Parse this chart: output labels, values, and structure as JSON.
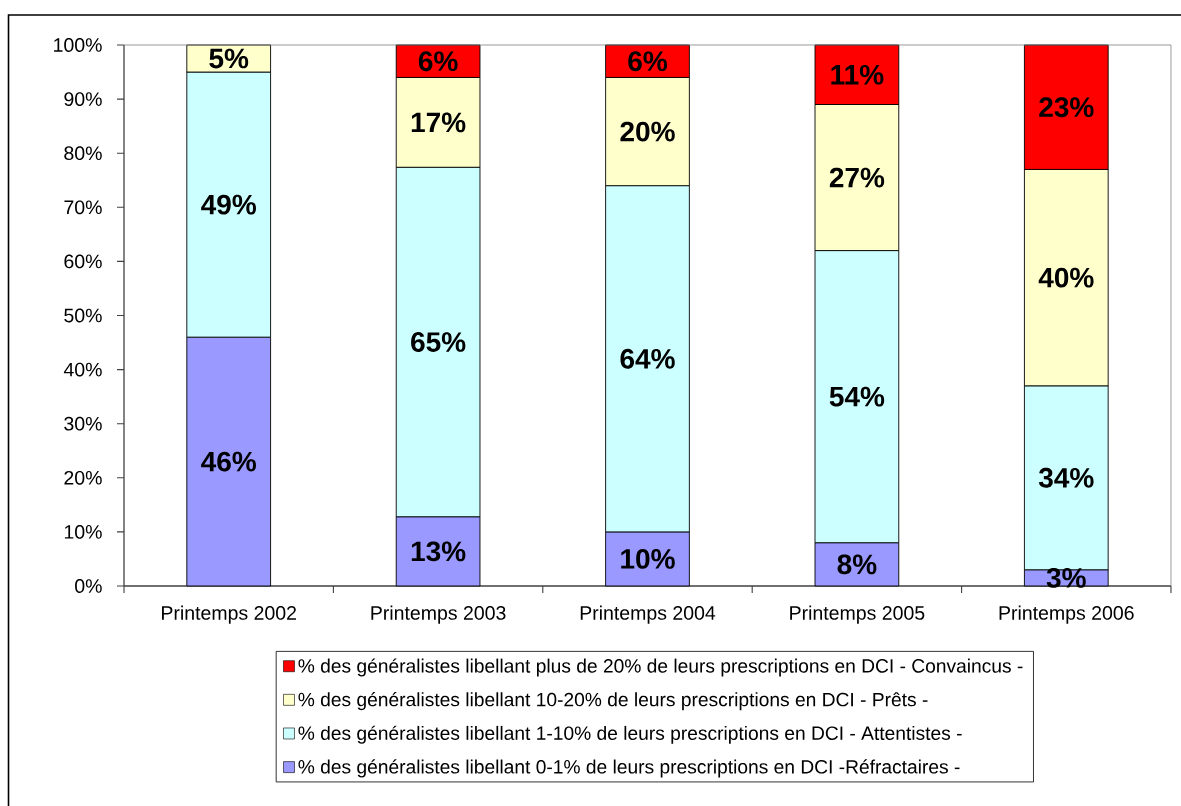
{
  "chart_data": {
    "type": "bar",
    "stacked": true,
    "categories": [
      "Printemps 2002",
      "Printemps 2003",
      "Printemps 2004",
      "Printemps 2005",
      "Printemps 2006"
    ],
    "series": [
      {
        "name": "% des généralistes libellant 0-1% de leurs prescriptions en DCI -Réfractaires -",
        "color": "#9999ff",
        "values": [
          46,
          12.8,
          10,
          8,
          3
        ],
        "value_labels": [
          "46%",
          "13%",
          "10%",
          "8%",
          "3%"
        ]
      },
      {
        "name": "% des généralistes libellant 1-10% de leurs prescriptions en DCI - Attentistes -",
        "color": "#ccffff",
        "values": [
          49,
          64.6,
          64,
          54,
          34
        ],
        "value_labels": [
          "49%",
          "65%",
          "64%",
          "54%",
          "34%"
        ]
      },
      {
        "name": "% des généralistes libellant 10-20% de leurs prescriptions en DCI - Prêts -",
        "color": "#ffffcc",
        "values": [
          5,
          16.6,
          20,
          27,
          40
        ],
        "value_labels": [
          "5%",
          "17%",
          "20%",
          "27%",
          "40%"
        ]
      },
      {
        "name": "% des généralistes libellant plus de 20% de leurs prescriptions en DCI - Convaincus -",
        "color": "#ff0000",
        "values": [
          null,
          6,
          6,
          11,
          23
        ],
        "value_labels": [
          null,
          "6%",
          "6%",
          "11%",
          "23%"
        ]
      }
    ],
    "ylim": [
      0,
      100
    ],
    "yticks": [
      {
        "value": 0,
        "label": "0%"
      },
      {
        "value": 10,
        "label": "10%"
      },
      {
        "value": 20,
        "label": "20%"
      },
      {
        "value": 30,
        "label": "30%"
      },
      {
        "value": 40,
        "label": "40%"
      },
      {
        "value": 50,
        "label": "50%"
      },
      {
        "value": 60,
        "label": "60%"
      },
      {
        "value": 70,
        "label": "70%"
      },
      {
        "value": 80,
        "label": "80%"
      },
      {
        "value": 90,
        "label": "90%"
      },
      {
        "value": 100,
        "label": "100%"
      }
    ],
    "legend": "bottom"
  }
}
